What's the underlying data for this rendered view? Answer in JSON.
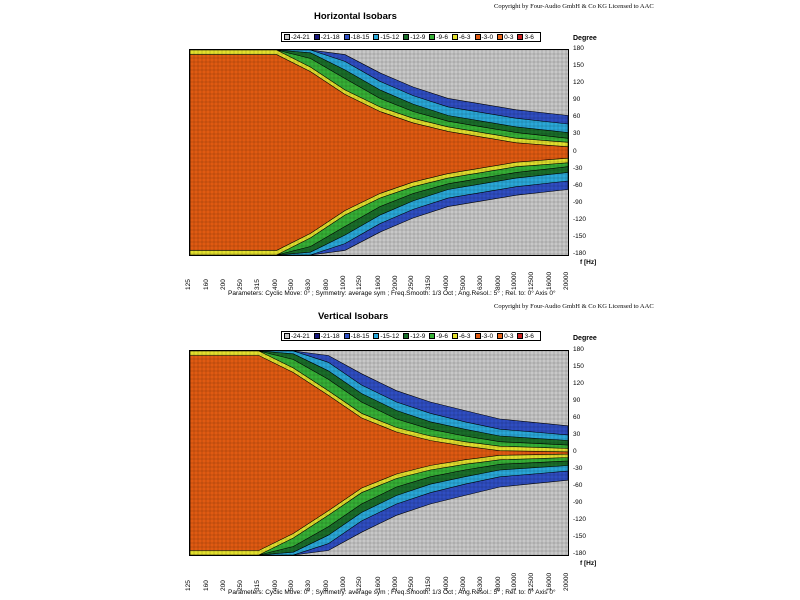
{
  "chart_data": [
    {
      "type": "heatmap",
      "title": "Horizontal Isobars",
      "copyright": "Copyright by Four-Audio GmbH & Co KG   Licensed to AAC",
      "y_title": "Degree",
      "x_unit": "f [Hz]",
      "x_ticks": [
        "125",
        "160",
        "200",
        "250",
        "315",
        "400",
        "500",
        "630",
        "800",
        "1000",
        "1250",
        "1600",
        "2000",
        "2500",
        "3150",
        "4000",
        "5000",
        "6300",
        "8000",
        "10000",
        "12500",
        "16000",
        "20000"
      ],
      "y_ticks": [
        "180",
        "150",
        "120",
        "90",
        "60",
        "30",
        "0",
        "-30",
        "-60",
        "-90",
        "-120",
        "-150",
        "-180"
      ],
      "ylim": [
        -180,
        180
      ],
      "x_scale": "log",
      "grid": true,
      "legend_placement": "top",
      "legend": [
        "-24-21",
        "-21-18",
        "-18-15",
        "-15-12",
        "-12-9",
        "-9-6",
        "-6-3",
        "-3-0",
        "0-3",
        "3-6"
      ],
      "level_colors": [
        "#c8c8c8",
        "#16167a",
        "#2f4ec2",
        "#2aa8d8",
        "#1a6e2a",
        "#36b036",
        "#e2e02e",
        "#e05a12",
        "#e8641a",
        "#c81e1e"
      ],
      "contour_half_widths_deg": {
        "frequencies_hz": [
          125,
          400,
          630,
          1000,
          1600,
          2500,
          4000,
          6300,
          10000,
          20000
        ],
        "-3dB": [
          180,
          180,
          150,
          110,
          80,
          60,
          45,
          35,
          25,
          18
        ],
        "-6dB": [
          180,
          180,
          165,
          130,
          95,
          72,
          55,
          45,
          35,
          25
        ],
        "-9dB": [
          180,
          180,
          175,
          145,
          110,
          85,
          65,
          55,
          45,
          35
        ],
        "-12dB": [
          180,
          180,
          180,
          160,
          125,
          100,
          80,
          70,
          60,
          50
        ],
        "-15dB": [
          180,
          180,
          180,
          172,
          140,
          115,
          95,
          85,
          75,
          65
        ]
      },
      "parameters": "Parameters:   Cyclic Move:  0°   ;   Symmetry: average sym   ;   Freq.Smooth: 1/3  Oct   ;   Ang.Resol.:  5°   ;   Rel. to: 0° Axis    0°"
    },
    {
      "type": "heatmap",
      "title": "Vertical Isobars",
      "copyright": "Copyright by Four-Audio GmbH & Co KG   Licensed to AAC",
      "y_title": "Degree",
      "x_unit": "f [Hz]",
      "x_ticks": [
        "125",
        "160",
        "200",
        "250",
        "315",
        "400",
        "500",
        "630",
        "800",
        "1000",
        "1250",
        "1600",
        "2000",
        "2500",
        "3150",
        "4000",
        "5000",
        "6300",
        "8000",
        "10000",
        "12500",
        "16000",
        "20000"
      ],
      "y_ticks": [
        "180",
        "150",
        "120",
        "90",
        "60",
        "30",
        "0",
        "-30",
        "-60",
        "-90",
        "-120",
        "-150",
        "-180"
      ],
      "ylim": [
        -180,
        180
      ],
      "x_scale": "log",
      "grid": true,
      "legend_placement": "top",
      "legend": [
        "-24-21",
        "-21-18",
        "-18-15",
        "-15-12",
        "-12-9",
        "-9-6",
        "-6-3",
        "-3-0",
        "0-3",
        "3-6"
      ],
      "level_colors": [
        "#c8c8c8",
        "#16167a",
        "#2f4ec2",
        "#2aa8d8",
        "#1a6e2a",
        "#36b036",
        "#e2e02e",
        "#e05a12",
        "#e8641a",
        "#c81e1e"
      ],
      "contour_half_widths_deg": {
        "frequencies_hz": [
          125,
          315,
          500,
          800,
          1250,
          2000,
          3150,
          5000,
          8000,
          20000
        ],
        "-3dB": [
          180,
          180,
          150,
          110,
          70,
          45,
          30,
          20,
          12,
          8
        ],
        "-6dB": [
          180,
          180,
          165,
          130,
          90,
          60,
          42,
          30,
          20,
          14
        ],
        "-9dB": [
          180,
          180,
          175,
          145,
          105,
          75,
          55,
          42,
          30,
          22
        ],
        "-12dB": [
          180,
          180,
          180,
          160,
          120,
          90,
          70,
          55,
          42,
          32
        ],
        "-15dB": [
          180,
          180,
          180,
          172,
          140,
          110,
          90,
          75,
          60,
          48
        ]
      },
      "parameters": "Parameters:   Cyclic Move:  0°   ;   Symmetry: average sym   ;   Freq.Smooth: 1/3  Oct   ;   Ang.Resol.:  5°   ;   Rel. to: 0° Axis    0°"
    }
  ]
}
